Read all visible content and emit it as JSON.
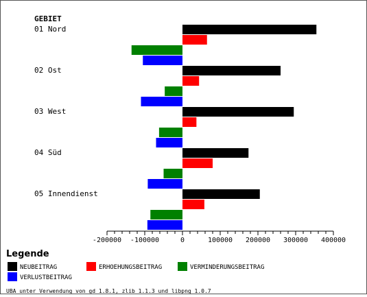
{
  "chart_data": {
    "type": "bar",
    "orientation": "horizontal",
    "category_header": "GEBIET",
    "categories": [
      "01 Nord",
      "02 Ost",
      "03 West",
      "04 Süd",
      "05 Innendienst"
    ],
    "series": [
      {
        "name": "NEUBEITRAG",
        "color": "#000000",
        "values": [
          355000,
          260000,
          295000,
          175000,
          205000
        ]
      },
      {
        "name": "ERHOEHUNGSBEITRAG",
        "color": "#ff0000",
        "values": [
          65000,
          44000,
          37000,
          80000,
          58000
        ]
      },
      {
        "name": "VERMINDERUNGSBEITRAG",
        "color": "#008000",
        "values": [
          -135000,
          -47000,
          -62000,
          -50000,
          -85000
        ]
      },
      {
        "name": "VERLUSTBEITRAG",
        "color": "#0000ff",
        "values": [
          -105000,
          -110000,
          -70000,
          -92000,
          -93000
        ]
      }
    ],
    "xlim": [
      -200000,
      400000
    ],
    "x_ticks": [
      "-200000",
      "-100000",
      "0",
      "100000",
      "200000",
      "300000",
      "400000"
    ],
    "x_tick_values": [
      -200000,
      -100000,
      0,
      100000,
      200000,
      300000,
      400000
    ],
    "legend_title": "Legende",
    "legend_position": "bottom-left",
    "grid": false
  },
  "footer": "UBA unter Verwendung von gd 1.8.1, zlib 1.1.3 und libpng 1.0.7"
}
